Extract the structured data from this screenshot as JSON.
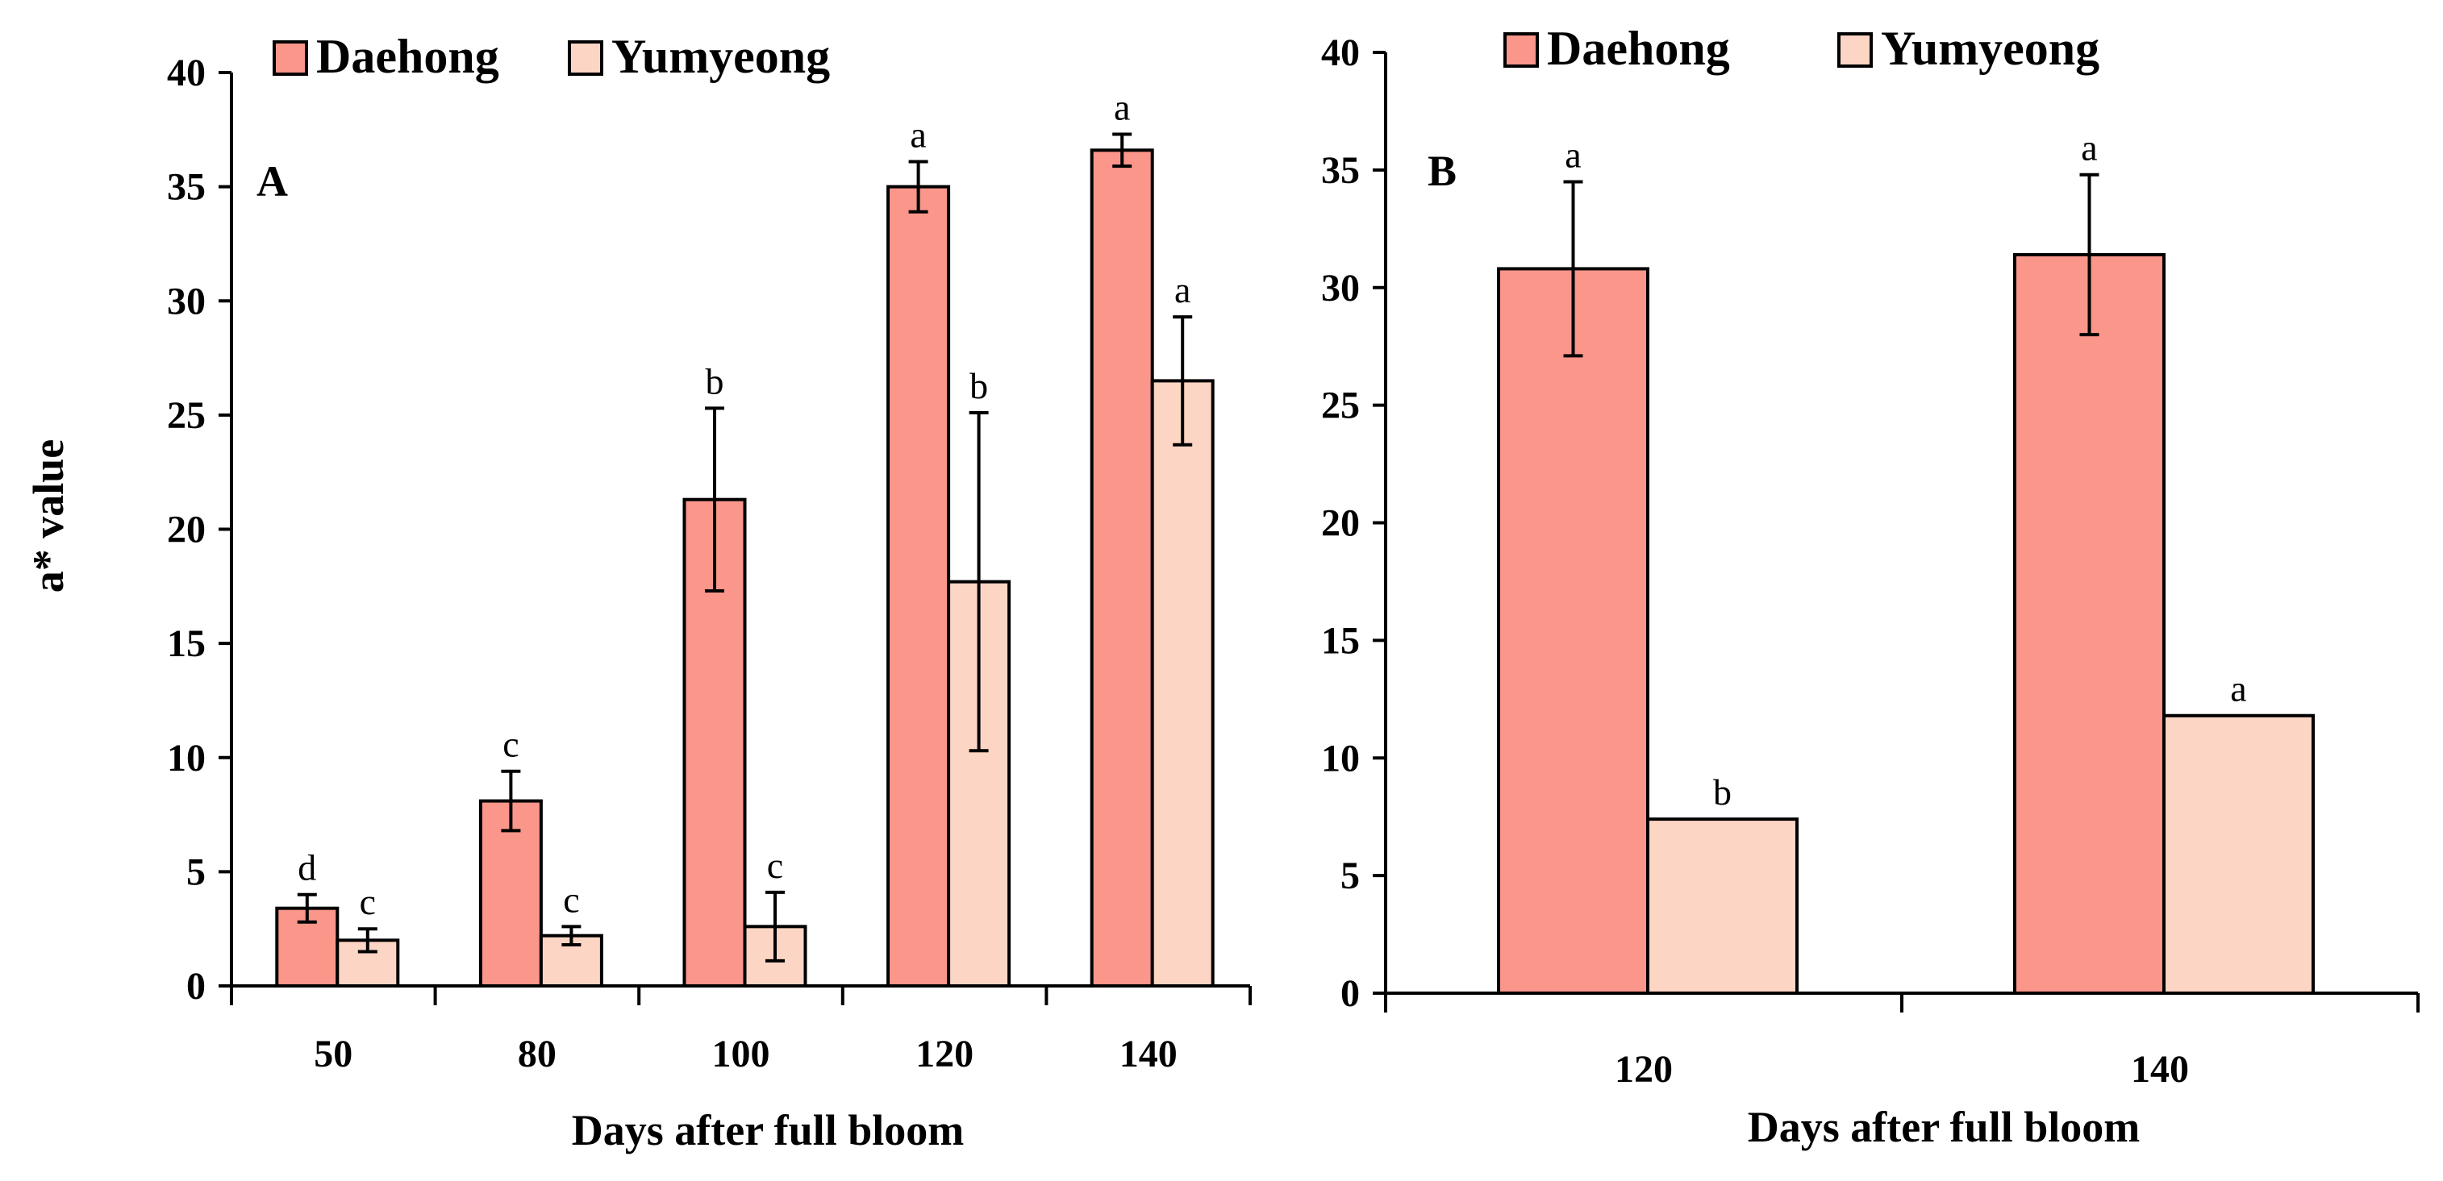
{
  "chart_data": [
    {
      "type": "bar",
      "panel_label": "A",
      "categories": [
        "50",
        "80",
        "100",
        "120",
        "140"
      ],
      "series": [
        {
          "name": "Daehong",
          "color": "#FA968A",
          "values": [
            3.4,
            8.1,
            21.3,
            35.0,
            36.6
          ],
          "errors": [
            0.6,
            1.3,
            4.0,
            1.1,
            0.7
          ],
          "labels": [
            "d",
            "c",
            "b",
            "a",
            "a"
          ]
        },
        {
          "name": "Yumyeong",
          "color": "#FDD5C4",
          "values": [
            2.0,
            2.2,
            2.6,
            17.7,
            26.5
          ],
          "errors": [
            0.5,
            0.4,
            1.5,
            7.4,
            2.8
          ],
          "labels": [
            "c",
            "c",
            "c",
            "b",
            "a"
          ]
        }
      ],
      "yticks": [
        "0",
        "5",
        "10",
        "15",
        "20",
        "25",
        "30",
        "35",
        "40"
      ],
      "ylim": [
        0,
        40
      ],
      "ylabel": "a* value",
      "xlabel": "Days after full bloom",
      "legend": [
        "Daehong",
        "Yumyeong"
      ]
    },
    {
      "type": "bar",
      "panel_label": "B",
      "categories": [
        "120",
        "140"
      ],
      "series": [
        {
          "name": "Daehong",
          "color": "#FA968A",
          "values": [
            30.8,
            31.4
          ],
          "errors": [
            3.7,
            3.4
          ],
          "labels": [
            "a",
            "a"
          ]
        },
        {
          "name": "Yumyeong",
          "color": "#FDD5C4",
          "values": [
            7.4,
            11.8
          ],
          "errors": [
            0,
            0
          ],
          "labels": [
            "b",
            "a"
          ]
        }
      ],
      "yticks": [
        "0",
        "5",
        "10",
        "15",
        "20",
        "25",
        "30",
        "35",
        "40"
      ],
      "ylim": [
        0,
        40
      ],
      "ylabel": "",
      "xlabel": "Days after full bloom",
      "legend": [
        "Daehong",
        "Yumyeong"
      ]
    }
  ]
}
